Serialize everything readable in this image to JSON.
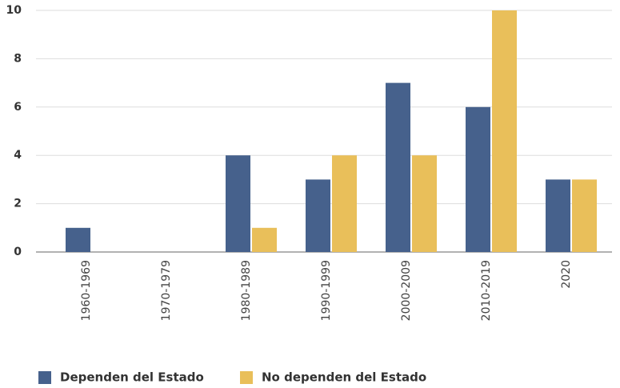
{
  "chart_data": {
    "type": "bar",
    "categories": [
      "1960-1969",
      "1970-1979",
      "1980-1989",
      "1990-1999",
      "2000-2009",
      "2010-2019",
      "2020"
    ],
    "series": [
      {
        "name": "Dependen del Estado",
        "color": "#46618c",
        "values": [
          1,
          0,
          4,
          3,
          7,
          6,
          3
        ]
      },
      {
        "name": "No dependen del Estado",
        "color": "#e9bf5a",
        "values": [
          0,
          0,
          1,
          4,
          4,
          10,
          3
        ]
      }
    ],
    "ylim": [
      0,
      10
    ],
    "yticks": [
      0,
      2,
      4,
      6,
      8,
      10
    ],
    "grid": true
  }
}
